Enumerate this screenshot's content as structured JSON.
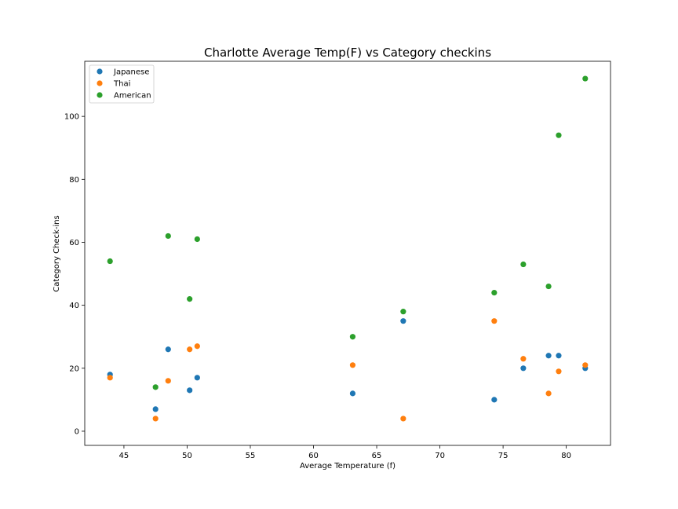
{
  "chart_data": {
    "type": "scatter",
    "title": "Charlotte Average Temp(F) vs Category checkins",
    "xlabel": "Average Temperature (f)",
    "ylabel": "Category Check-ins",
    "xlim": [
      41.9,
      83.5
    ],
    "ylim": [
      -4.5,
      117.5
    ],
    "xticks": [
      45,
      50,
      55,
      60,
      65,
      70,
      75,
      80
    ],
    "yticks": [
      0,
      20,
      40,
      60,
      80,
      100
    ],
    "grid": false,
    "legend_position": "top-left",
    "series": [
      {
        "name": "Japanese",
        "color": "#1f77b4",
        "points": [
          {
            "x": 43.9,
            "y": 18
          },
          {
            "x": 47.5,
            "y": 7
          },
          {
            "x": 48.5,
            "y": 26
          },
          {
            "x": 50.2,
            "y": 13
          },
          {
            "x": 50.8,
            "y": 17
          },
          {
            "x": 63.1,
            "y": 12
          },
          {
            "x": 67.1,
            "y": 35
          },
          {
            "x": 74.3,
            "y": 10
          },
          {
            "x": 76.6,
            "y": 20
          },
          {
            "x": 78.6,
            "y": 24
          },
          {
            "x": 79.4,
            "y": 24
          },
          {
            "x": 81.5,
            "y": 20
          }
        ]
      },
      {
        "name": "Thai",
        "color": "#ff7f0e",
        "points": [
          {
            "x": 43.9,
            "y": 17
          },
          {
            "x": 47.5,
            "y": 4
          },
          {
            "x": 48.5,
            "y": 16
          },
          {
            "x": 50.2,
            "y": 26
          },
          {
            "x": 50.8,
            "y": 27
          },
          {
            "x": 63.1,
            "y": 21
          },
          {
            "x": 67.1,
            "y": 4
          },
          {
            "x": 74.3,
            "y": 35
          },
          {
            "x": 76.6,
            "y": 23
          },
          {
            "x": 78.6,
            "y": 12
          },
          {
            "x": 79.4,
            "y": 19
          },
          {
            "x": 81.5,
            "y": 21
          }
        ]
      },
      {
        "name": "American",
        "color": "#2ca02c",
        "points": [
          {
            "x": 43.9,
            "y": 54
          },
          {
            "x": 47.5,
            "y": 14
          },
          {
            "x": 48.5,
            "y": 62
          },
          {
            "x": 50.2,
            "y": 42
          },
          {
            "x": 50.8,
            "y": 61
          },
          {
            "x": 63.1,
            "y": 30
          },
          {
            "x": 67.1,
            "y": 38
          },
          {
            "x": 74.3,
            "y": 44
          },
          {
            "x": 76.6,
            "y": 53
          },
          {
            "x": 78.6,
            "y": 46
          },
          {
            "x": 79.4,
            "y": 94
          },
          {
            "x": 81.5,
            "y": 112
          }
        ]
      }
    ]
  }
}
